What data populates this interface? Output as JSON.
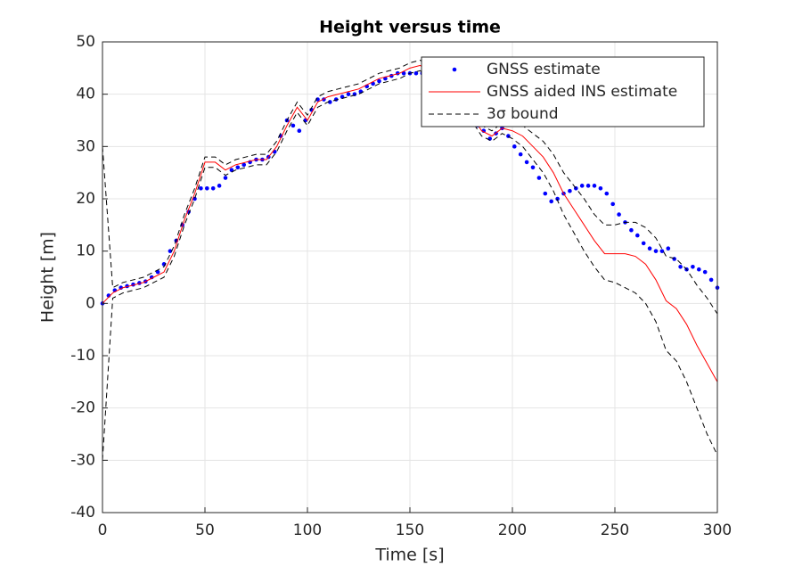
{
  "chart_data": {
    "type": "line",
    "title": "Height versus time",
    "x_label": "Time [s]",
    "y_label": "Height [m]",
    "xlim": [
      0,
      300
    ],
    "xticks": [
      0,
      50,
      100,
      150,
      200,
      250,
      300
    ],
    "ylim": [
      -40,
      50
    ],
    "yticks": [
      -40,
      -30,
      -20,
      -10,
      0,
      10,
      20,
      30,
      40,
      50
    ],
    "grid": true,
    "legend": "upper right",
    "series": [
      {
        "name": "GNSS estimate",
        "color": "#0000ff",
        "style": "dots",
        "x": [
          0,
          3,
          6,
          9,
          12,
          15,
          18,
          21,
          24,
          27,
          30,
          33,
          36,
          39,
          42,
          45,
          48,
          51,
          54,
          57,
          60,
          63,
          66,
          69,
          72,
          75,
          78,
          81,
          84,
          87,
          90,
          93,
          96,
          99,
          102,
          105,
          108,
          111,
          114,
          117,
          120,
          123,
          126,
          129,
          132,
          135,
          138,
          141,
          144,
          147,
          150,
          153,
          156,
          159,
          162,
          165,
          168,
          171,
          174,
          177,
          180,
          183,
          186,
          189,
          192,
          195,
          198,
          201,
          204,
          207,
          210,
          213,
          216,
          219,
          222,
          225,
          228,
          231,
          234,
          237,
          240,
          243,
          246,
          249,
          252,
          255,
          258,
          261,
          264,
          267,
          270,
          273,
          276,
          279,
          282,
          285,
          288,
          291,
          294,
          297,
          300
        ],
        "values": [
          0,
          1.5,
          2.5,
          3,
          3.3,
          3.6,
          3.9,
          4.2,
          5,
          6,
          7.5,
          10,
          12,
          15,
          17.5,
          20,
          22,
          22,
          22,
          22.5,
          24,
          25.5,
          26,
          26.5,
          27,
          27.5,
          27.5,
          28,
          29,
          32,
          35,
          34,
          33,
          35,
          37,
          39,
          39,
          38.5,
          39,
          39.5,
          40,
          40,
          40.5,
          41.5,
          42,
          42.5,
          43,
          43.5,
          44,
          44,
          44,
          44,
          44,
          43,
          42,
          41,
          40,
          39,
          38,
          37,
          36,
          34,
          33,
          31.5,
          32.5,
          33.5,
          32,
          30,
          28.5,
          27,
          26,
          24,
          21,
          19.5,
          20,
          21,
          21.5,
          22,
          22.5,
          22.5,
          22.5,
          22,
          21,
          19,
          17,
          15.5,
          14,
          13,
          11.5,
          10.5,
          10,
          10,
          10.5,
          8.5,
          7,
          6.5,
          7,
          6.5,
          6,
          4.5,
          3
        ]
      },
      {
        "name": "GNSS aided INS estimate",
        "color": "#ff0000",
        "style": "solid",
        "x": [
          0,
          5,
          10,
          15,
          20,
          25,
          30,
          35,
          40,
          45,
          50,
          55,
          60,
          65,
          70,
          75,
          80,
          85,
          90,
          95,
          100,
          105,
          110,
          115,
          120,
          125,
          130,
          135,
          140,
          145,
          150,
          155,
          160,
          165,
          170,
          175,
          180,
          185,
          190,
          195,
          200,
          205,
          210,
          215,
          220,
          225,
          230,
          235,
          240,
          245,
          250,
          255,
          260,
          265,
          270,
          275,
          280,
          285,
          290,
          295,
          300
        ],
        "values": [
          0,
          2,
          3,
          3.5,
          4,
          5,
          6,
          10,
          16,
          21,
          27,
          27,
          25.5,
          26.5,
          27,
          27.5,
          27.5,
          30,
          34,
          37.5,
          35,
          38.5,
          39.5,
          40,
          40.5,
          41,
          42,
          43,
          43.5,
          44,
          45,
          45.5,
          44,
          42,
          40,
          38,
          36,
          33,
          32,
          33.5,
          33,
          32,
          30,
          28,
          25,
          21,
          18,
          15,
          12,
          9.5,
          9.5,
          9.5,
          9,
          7.5,
          4.5,
          0.5,
          -1,
          -4,
          -8,
          -11.5,
          -15
        ]
      },
      {
        "name": "3σ bound",
        "color": "#000000",
        "style": "dashed",
        "x": [
          0,
          5,
          10,
          15,
          20,
          25,
          30,
          35,
          40,
          45,
          50,
          55,
          60,
          65,
          70,
          75,
          80,
          85,
          90,
          95,
          100,
          105,
          110,
          115,
          120,
          125,
          130,
          135,
          140,
          145,
          150,
          155,
          160,
          165,
          170,
          175,
          180,
          185,
          190,
          195,
          200,
          205,
          210,
          215,
          220,
          225,
          230,
          235,
          240,
          245,
          250,
          255,
          260,
          265,
          270,
          275,
          280,
          285,
          290,
          295,
          300
        ],
        "values": [
          30,
          3,
          4,
          4.5,
          5,
          6,
          7,
          11,
          17,
          22,
          28,
          28,
          26.5,
          27.5,
          28,
          28.5,
          28.5,
          31,
          35,
          38.5,
          36,
          39.5,
          40.5,
          41,
          41.5,
          42,
          43,
          44,
          44.5,
          45,
          46,
          46.5,
          45,
          43,
          41,
          39,
          37,
          34,
          33,
          34.5,
          34.5,
          34,
          32.5,
          31,
          28.5,
          25,
          22.5,
          20,
          17,
          15,
          15,
          15.5,
          15.5,
          14.5,
          12.5,
          9,
          8.5,
          6.5,
          3.5,
          1,
          -2
        ],
        "lower": [
          -30,
          1,
          2,
          2.5,
          3,
          4,
          5,
          9,
          15,
          20,
          26,
          26,
          24.5,
          25.5,
          26,
          26.5,
          26.5,
          29,
          33,
          36.5,
          34,
          37.5,
          38.5,
          39,
          39.5,
          40,
          41,
          42,
          42.5,
          43,
          44,
          44.5,
          43,
          41,
          39,
          37,
          35,
          32,
          31,
          32.5,
          31.5,
          30,
          27.5,
          25,
          21.5,
          17,
          13.5,
          10,
          7,
          4.5,
          4,
          3,
          2,
          0,
          -3.5,
          -9,
          -11,
          -15,
          -20,
          -25,
          -29
        ]
      }
    ]
  }
}
